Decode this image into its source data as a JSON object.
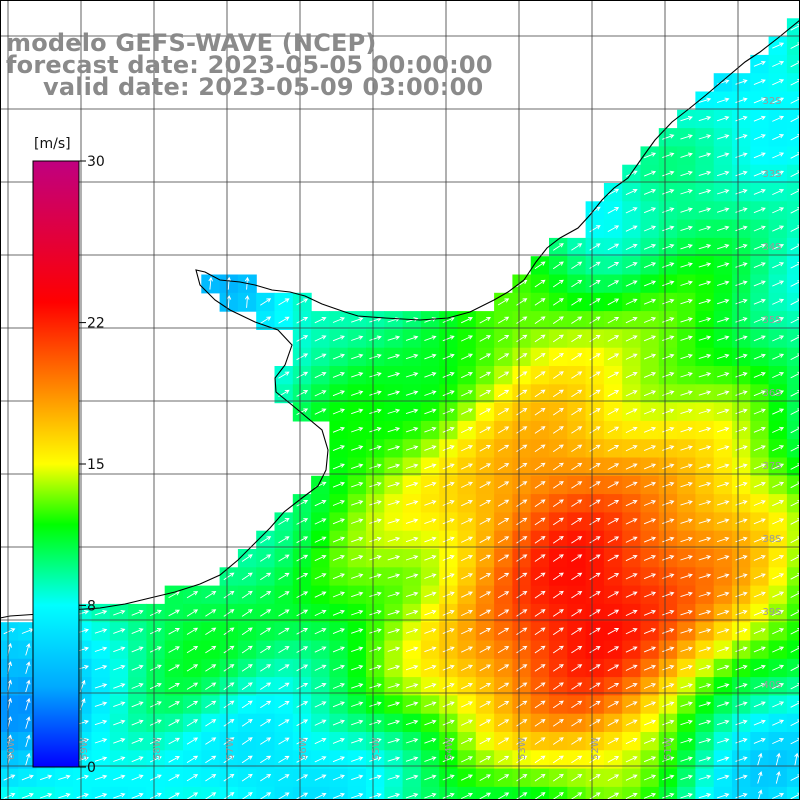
{
  "title": {
    "line1": "modelo GEFS-WAVE (NCEP)",
    "line2": "forecast date: 2023-05-05 00:00:00",
    "line3": "valid date: 2023-05-09 03:00:00"
  },
  "colorbar": {
    "unit": "[m/s]",
    "ticks": [
      {
        "label": "30",
        "value": 30
      },
      {
        "label": "22",
        "value": 22
      },
      {
        "label": "15",
        "value": 15
      },
      {
        "label": "8",
        "value": 8
      },
      {
        "label": "0",
        "value": 0
      }
    ],
    "colors": [
      "#0000ff",
      "#00aaff",
      "#00ffff",
      "#00ff00",
      "#ffff00",
      "#ff8000",
      "#ff0000",
      "#c00080"
    ]
  },
  "grid": {
    "lat_labels": [
      "32S",
      "33S",
      "34S",
      "35S",
      "36S",
      "37S",
      "38S",
      "39S",
      "40S"
    ],
    "lon_labels": [
      "60W",
      "59W",
      "58W",
      "57W",
      "56W",
      "55W",
      "54W",
      "53W",
      "52W",
      "51W"
    ]
  },
  "colors": {
    "land": "#ffffff",
    "coastline": "#000000",
    "gridline": "#333333",
    "arrow": "#ffffff",
    "title_text": "#8a8a8a"
  }
}
